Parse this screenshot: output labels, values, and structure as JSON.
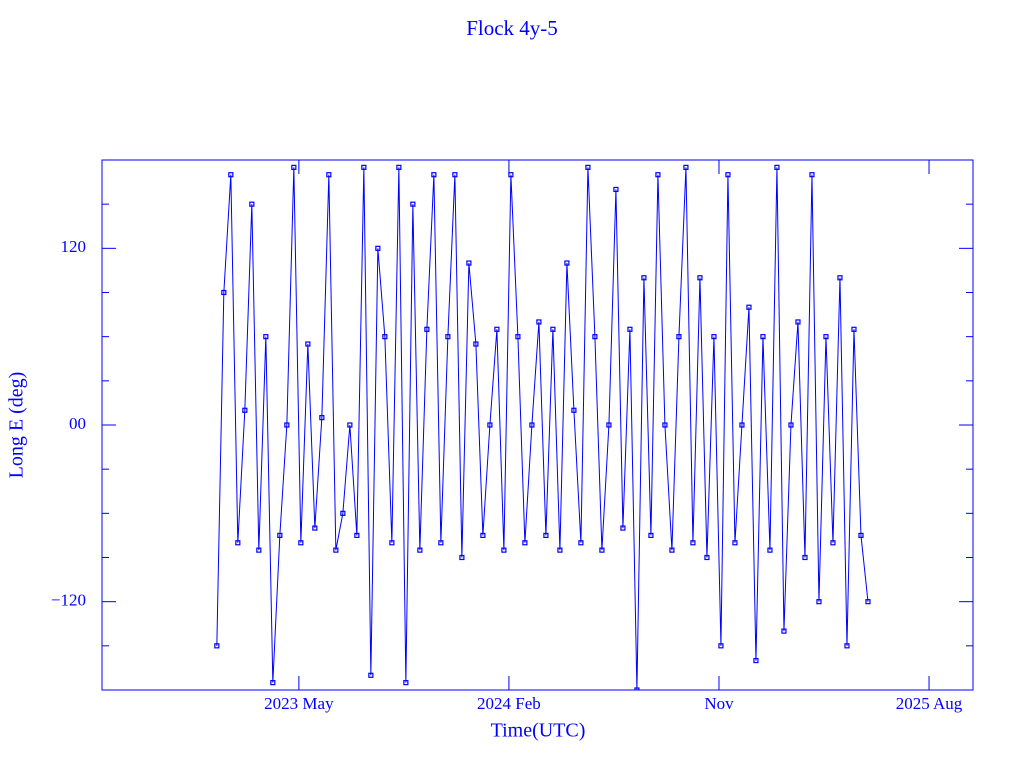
{
  "chart_data": {
    "type": "line",
    "title": "Flock 4y-5",
    "xlabel": "Time(UTC)",
    "ylabel": "Long E (deg)",
    "color": "#0000ff",
    "xlim": [
      2022.63,
      2025.74
    ],
    "xticks": [
      {
        "value": 2023.333,
        "label": "2023 May"
      },
      {
        "value": 2024.083,
        "label": "2024 Feb"
      },
      {
        "value": 2024.833,
        "label": "Nov"
      },
      {
        "value": 2025.583,
        "label": "2025 Aug"
      }
    ],
    "ylim": [
      -180,
      180
    ],
    "yticks": [
      {
        "value": -120,
        "label": "−120"
      },
      {
        "value": 0,
        "label": "00"
      },
      120
    ],
    "yminorticks": [
      -150,
      -90,
      -60,
      -30,
      30,
      60,
      90,
      150
    ],
    "x": [
      2023.04,
      2023.065,
      2023.09,
      2023.115,
      2023.14,
      2023.165,
      2023.19,
      2023.215,
      2023.24,
      2023.265,
      2023.29,
      2023.315,
      2023.34,
      2023.365,
      2023.39,
      2023.415,
      2023.44,
      2023.465,
      2023.49,
      2023.515,
      2023.54,
      2023.565,
      2023.59,
      2023.615,
      2023.64,
      2023.665,
      2023.69,
      2023.715,
      2023.74,
      2023.765,
      2023.79,
      2023.815,
      2023.84,
      2023.865,
      2023.89,
      2023.915,
      2023.94,
      2023.965,
      2023.99,
      2024.015,
      2024.04,
      2024.065,
      2024.09,
      2024.115,
      2024.14,
      2024.165,
      2024.19,
      2024.215,
      2024.24,
      2024.265,
      2024.29,
      2024.315,
      2024.34,
      2024.365,
      2024.39,
      2024.415,
      2024.44,
      2024.465,
      2024.49,
      2024.515,
      2024.54,
      2024.565,
      2024.59,
      2024.615,
      2024.64,
      2024.665,
      2024.69,
      2024.715,
      2024.74,
      2024.765,
      2024.79,
      2024.815,
      2024.84,
      2024.865,
      2024.89,
      2024.915,
      2024.94,
      2024.965,
      2024.99,
      2025.015,
      2025.04,
      2025.065,
      2025.09,
      2025.115,
      2025.14,
      2025.165,
      2025.19,
      2025.215,
      2025.24,
      2025.265,
      2025.29,
      2025.315,
      2025.34,
      2025.365
    ],
    "values": [
      -150,
      90,
      170,
      -80,
      10,
      150,
      -85,
      60,
      -175,
      -75,
      0,
      175,
      -80,
      55,
      -70,
      5,
      170,
      -85,
      -60,
      0,
      -75,
      175,
      -170,
      120,
      60,
      -80,
      175,
      -175,
      150,
      -85,
      65,
      170,
      -80,
      60,
      170,
      -90,
      110,
      55,
      -75,
      0,
      65,
      -85,
      170,
      60,
      -80,
      0,
      70,
      -75,
      65,
      -85,
      110,
      10,
      -80,
      175,
      60,
      -85,
      0,
      160,
      -70,
      65,
      -180,
      100,
      -75,
      170,
      0,
      -85,
      60,
      175,
      -80,
      100,
      -90,
      60,
      -150,
      170,
      -80,
      0,
      80,
      -160,
      60,
      -85,
      175,
      -140,
      0,
      70,
      -90,
      170,
      -120,
      60,
      -80,
      100,
      -150,
      65,
      -75,
      -120
    ]
  }
}
